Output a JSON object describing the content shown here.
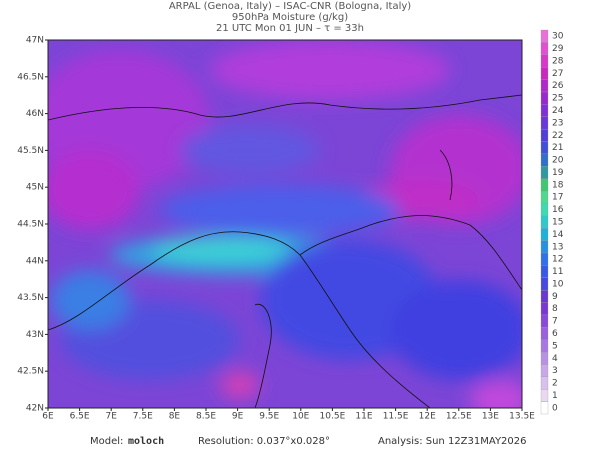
{
  "header": {
    "line1": "ARPAL (Genoa, Italy)  –  ISAC-CNR (Bologna, Italy)",
    "line2": "950hPa Moisture (g/kg)",
    "line3": "21 UTC Mon 01 JUN  –  τ = 33h"
  },
  "map": {
    "lon_labels": [
      "6E",
      "6.5E",
      "7E",
      "7.5E",
      "8E",
      "8.5E",
      "9E",
      "9.5E",
      "10E",
      "10.5E",
      "11E",
      "11.5E",
      "12E",
      "12.5E",
      "13E",
      "13.5E"
    ],
    "lat_labels": [
      "42N",
      "42.5N",
      "43N",
      "43.5N",
      "44N",
      "44.5N",
      "45N",
      "45.5N",
      "46N",
      "46.5N",
      "47N"
    ]
  },
  "colorbar": {
    "labels": [
      0,
      1,
      2,
      3,
      4,
      5,
      6,
      7,
      8,
      9,
      10,
      11,
      12,
      13,
      14,
      15,
      16,
      17,
      18,
      19,
      20,
      21,
      22,
      23,
      24,
      25,
      26,
      27,
      28,
      29,
      30
    ]
  },
  "footer": {
    "model_label": "Model:",
    "model": "moloch",
    "resolution": "Resolution: 0.037°x0.028°",
    "analysis": "Analysis: Sun 12Z31MAY2026"
  }
}
